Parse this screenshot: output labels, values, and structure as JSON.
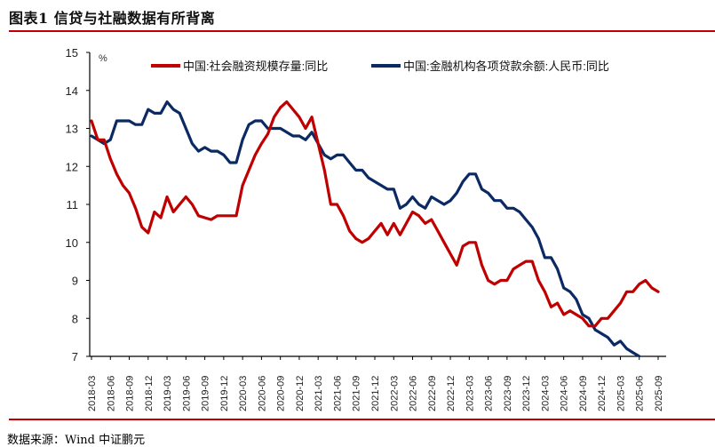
{
  "title": "图表1  信贷与社融数据有所背离",
  "source": "数据来源：Wind   中证鹏元",
  "chart_data": {
    "type": "line",
    "title": "",
    "ylabel": "%",
    "ylim": [
      7,
      15
    ],
    "yticks": [
      7,
      8,
      9,
      10,
      11,
      12,
      13,
      14,
      15
    ],
    "grid": false,
    "legend_position": "top",
    "x_start": "2018-03",
    "x_end": "2025-09",
    "x_tick_labels": [
      "2018-03",
      "2018-06",
      "2018-09",
      "2018-12",
      "2019-03",
      "2019-06",
      "2019-09",
      "2019-12",
      "2020-03",
      "2020-06",
      "2020-09",
      "2020-12",
      "2021-03",
      "2021-06",
      "2021-09",
      "2021-12",
      "2022-03",
      "2022-06",
      "2022-09",
      "2022-12",
      "2023-03",
      "2023-06",
      "2023-09",
      "2023-12",
      "2024-03",
      "2024-06",
      "2024-09",
      "2024-12",
      "2025-03",
      "2025-06",
      "2025-09"
    ],
    "series": [
      {
        "name": "中国:社会融资规模存量:同比",
        "color": "#c00000",
        "start": "2018-03",
        "values": [
          13.2,
          12.7,
          12.7,
          12.2,
          11.8,
          11.5,
          11.3,
          10.9,
          10.4,
          10.25,
          10.8,
          10.65,
          11.2,
          10.8,
          11.0,
          11.2,
          11.0,
          10.7,
          10.65,
          10.6,
          10.7,
          10.7,
          10.7,
          10.7,
          11.5,
          11.9,
          12.3,
          12.6,
          12.85,
          13.3,
          13.55,
          13.7,
          13.5,
          13.3,
          13.0,
          13.3,
          12.6,
          11.9,
          11.0,
          11.0,
          10.7,
          10.3,
          10.1,
          10.0,
          10.1,
          10.3,
          10.5,
          10.2,
          10.5,
          10.2,
          10.5,
          10.8,
          10.7,
          10.5,
          10.6,
          10.3,
          10.0,
          9.7,
          9.4,
          9.9,
          10.0,
          10.0,
          9.4,
          9.0,
          8.9,
          9.0,
          9.0,
          9.3,
          9.4,
          9.5,
          9.5,
          9.0,
          8.7,
          8.3,
          8.4,
          8.1,
          8.2,
          8.1,
          8.0,
          7.8,
          7.8,
          8.0,
          8.0,
          8.2,
          8.4,
          8.7,
          8.7,
          8.9,
          9.0,
          8.8,
          8.7
        ]
      },
      {
        "name": "中国:金融机构各项贷款余额:人民币:同比",
        "color": "#0b2a63",
        "start": "2018-03",
        "values": [
          12.8,
          12.7,
          12.6,
          12.7,
          13.2,
          13.2,
          13.2,
          13.1,
          13.1,
          13.5,
          13.4,
          13.4,
          13.7,
          13.5,
          13.4,
          13.0,
          12.6,
          12.4,
          12.5,
          12.4,
          12.4,
          12.3,
          12.1,
          12.1,
          12.7,
          13.1,
          13.2,
          13.2,
          13.0,
          13.0,
          13.0,
          12.9,
          12.8,
          12.8,
          12.7,
          12.9,
          12.6,
          12.3,
          12.2,
          12.3,
          12.3,
          12.1,
          11.9,
          11.9,
          11.7,
          11.6,
          11.5,
          11.4,
          11.4,
          10.9,
          11.0,
          11.2,
          11.0,
          10.9,
          11.2,
          11.1,
          11.0,
          11.1,
          11.3,
          11.6,
          11.8,
          11.8,
          11.4,
          11.3,
          11.1,
          11.1,
          10.9,
          10.9,
          10.8,
          10.6,
          10.4,
          10.1,
          9.6,
          9.6,
          9.3,
          8.8,
          8.7,
          8.5,
          8.1,
          8.0,
          7.7,
          7.6,
          7.5,
          7.3,
          7.4,
          7.2,
          7.1,
          7.0
        ]
      }
    ]
  }
}
